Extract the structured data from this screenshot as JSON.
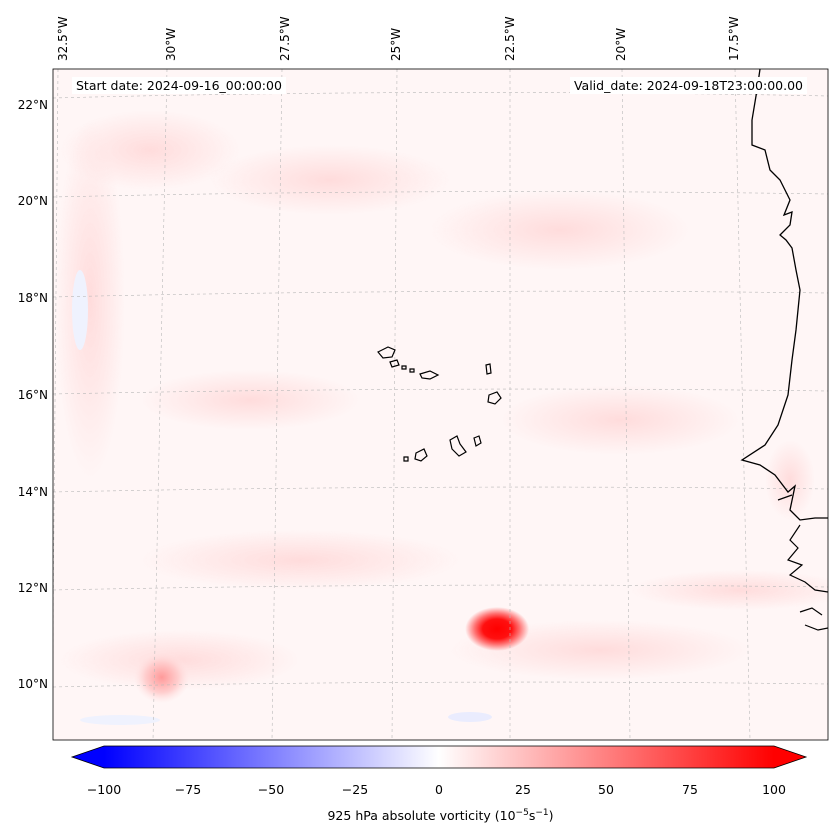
{
  "map": {
    "start_date": "Start date: 2024-09-16_00:00:00",
    "valid_date": "Valid_date: 2024-09-18T23:00:00.00",
    "variable": "925 hPa absolute vorticity",
    "units_prefix": "(10",
    "units_exp1": "−5",
    "units_mid": "s",
    "units_exp2": "−1",
    "units_suffix": ")",
    "longitude_labels": [
      "32.5°W",
      "30°W",
      "27.5°W",
      "25°W",
      "22.5°W",
      "20°W",
      "17.5°W"
    ],
    "latitude_labels": [
      "22°N",
      "20°N",
      "18°N",
      "16°N",
      "14°N",
      "12°N",
      "10°N"
    ],
    "extent": {
      "lon_min": -32.6,
      "lon_max": -15.5,
      "lat_min": 8.8,
      "lat_max": 22.7
    },
    "vorticity_max_center": {
      "lon": -22.8,
      "lat": 11.1
    },
    "secondary_max_center": {
      "lon": -30.2,
      "lat": 10.1
    }
  },
  "colorbar": {
    "ticks": [
      "−100",
      "−75",
      "−50",
      "−25",
      "0",
      "25",
      "50",
      "75",
      "100"
    ],
    "min": -100,
    "max": 100,
    "negative_color": "#0000ff",
    "zero_color": "#ffffff",
    "positive_color": "#ff0000"
  },
  "colors": {
    "coastline": "#000000",
    "gridline": "#b0b0b0"
  }
}
